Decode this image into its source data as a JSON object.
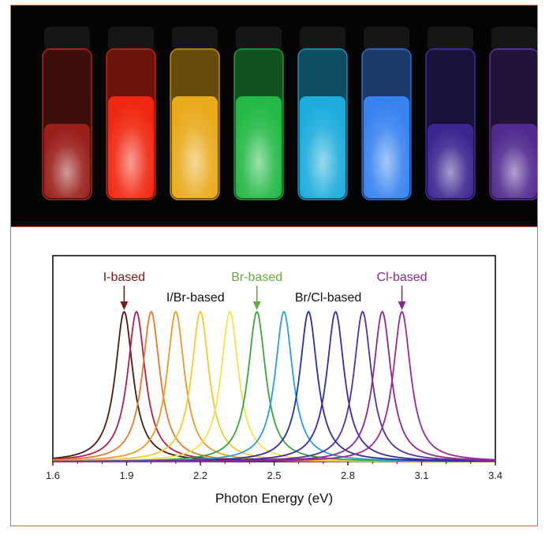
{
  "photo": {
    "background": "#050505",
    "vials": [
      {
        "color": "#e8302a",
        "dim": true
      },
      {
        "color": "#ff2a12",
        "dim": false
      },
      {
        "color": "#f7b51e",
        "dim": false
      },
      {
        "color": "#27c44a",
        "dim": false
      },
      {
        "color": "#1fb7ea",
        "dim": false
      },
      {
        "color": "#3c8cff",
        "dim": false
      },
      {
        "color": "#5a3ad8",
        "dim": true
      },
      {
        "color": "#7a40d8",
        "dim": true
      }
    ]
  },
  "chart_data": {
    "type": "line",
    "xlabel": "Photon Energy (eV)",
    "ylabel": "",
    "xlim": [
      1.6,
      3.4
    ],
    "ylim": [
      0,
      1
    ],
    "xticks": [
      "1.6",
      "1.9",
      "2.2",
      "2.5",
      "2.8",
      "3.1",
      "3.4"
    ],
    "grid": false,
    "series": [
      {
        "peak": 1.89,
        "color": "#4a1a10"
      },
      {
        "peak": 1.94,
        "color": "#b0204a"
      },
      {
        "peak": 2.0,
        "color": "#e07a30"
      },
      {
        "peak": 2.1,
        "color": "#e89a28"
      },
      {
        "peak": 2.2,
        "color": "#f2c92c"
      },
      {
        "peak": 2.32,
        "color": "#f4e04a"
      },
      {
        "peak": 2.43,
        "color": "#3aa43c"
      },
      {
        "peak": 2.54,
        "color": "#2a9ed6"
      },
      {
        "peak": 2.64,
        "color": "#2a2e9a"
      },
      {
        "peak": 2.75,
        "color": "#3a2aa8"
      },
      {
        "peak": 2.86,
        "color": "#52309e"
      },
      {
        "peak": 2.94,
        "color": "#8a2a8e"
      },
      {
        "peak": 3.02,
        "color": "#9a2896"
      }
    ],
    "annotations": [
      {
        "text": "I-based",
        "at": 1.89,
        "color": "#7a1a1a",
        "arrow": true
      },
      {
        "text": "I/Br-based",
        "at": 2.18,
        "color": "#111111",
        "arrow": false
      },
      {
        "text": "Br-based",
        "at": 2.43,
        "color": "#6aa83a",
        "arrow": true
      },
      {
        "text": "Br/Cl-based",
        "at": 2.72,
        "color": "#111111",
        "arrow": false
      },
      {
        "text": "Cl-based",
        "at": 3.02,
        "color": "#8a2a8e",
        "arrow": true
      }
    ]
  }
}
